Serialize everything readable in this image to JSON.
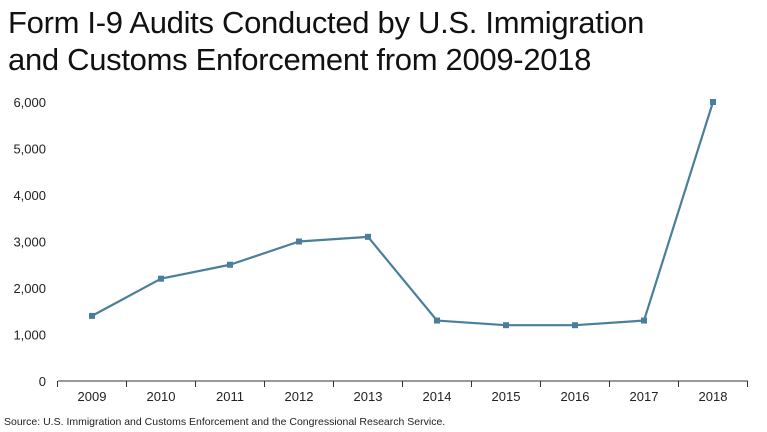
{
  "title_lines": [
    "Form I-9 Audits Conducted by U.S. Immigration",
    "and Customs Enforcement from 2009-2018"
  ],
  "source": "Source: U.S. Immigration and Customs Enforcement and the Congressional Research Service.",
  "colors": {
    "line": "#4a7f9b",
    "gridline": "#cccccc",
    "axis": "#333333"
  },
  "chart_data": {
    "type": "line",
    "title": "Form I-9 Audits Conducted by U.S. Immigration and Customs Enforcement from 2009-2018",
    "categories": [
      "2009",
      "2010",
      "2011",
      "2012",
      "2013",
      "2014",
      "2015",
      "2016",
      "2017",
      "2018"
    ],
    "series": [
      {
        "values": [
          1400,
          2200,
          2500,
          3000,
          3100,
          1300,
          1200,
          1200,
          1300,
          6000
        ]
      }
    ],
    "xlabel": "",
    "ylabel": "",
    "ylim": [
      0,
      6000
    ],
    "yticks": [
      0,
      1000,
      2000,
      3000,
      4000,
      5000,
      6000
    ],
    "ytick_labels": [
      "0",
      "1,000",
      "2,000",
      "3,000",
      "4,000",
      "5,000",
      "6,000"
    ],
    "marker": "square",
    "grid": false
  }
}
